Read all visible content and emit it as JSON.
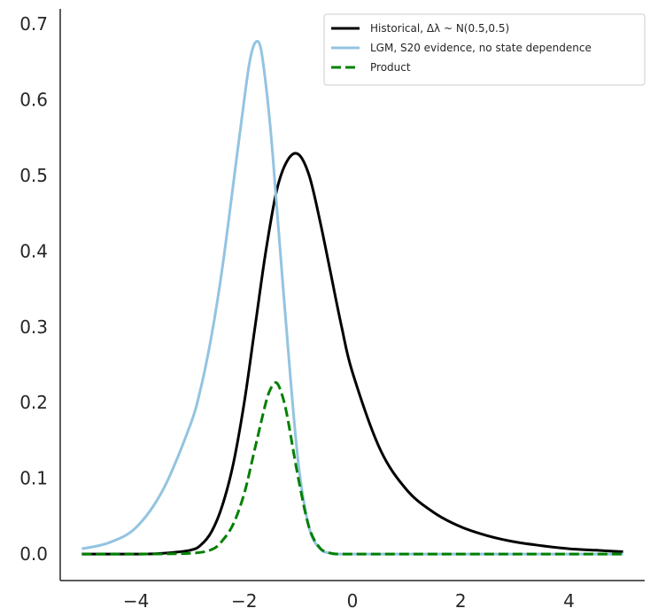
{
  "chart_data": {
    "type": "line",
    "title": "",
    "xlabel": "",
    "ylabel": "",
    "xlim": [
      -5.4,
      5.4
    ],
    "ylim": [
      -0.035,
      0.72
    ],
    "x_ticks": [
      {
        "value": -4,
        "label": "−4"
      },
      {
        "value": -2,
        "label": "−2"
      },
      {
        "value": 0,
        "label": "0"
      },
      {
        "value": 2,
        "label": "2"
      },
      {
        "value": 4,
        "label": "4"
      }
    ],
    "y_ticks": [
      {
        "value": 0.0,
        "label": "0.0"
      },
      {
        "value": 0.1,
        "label": "0.1"
      },
      {
        "value": 0.2,
        "label": "0.2"
      },
      {
        "value": 0.3,
        "label": "0.3"
      },
      {
        "value": 0.4,
        "label": "0.4"
      },
      {
        "value": 0.5,
        "label": "0.5"
      },
      {
        "value": 0.6,
        "label": "0.6"
      },
      {
        "value": 0.7,
        "label": "0.7"
      }
    ],
    "grid": false,
    "legend_position": "top-right",
    "series": [
      {
        "name": "Historical, Δλ ~ N(0.5,0.5)",
        "color": "#000000",
        "style": "solid",
        "x": [
          -5,
          -4,
          -3.5,
          -3,
          -2.8,
          -2.6,
          -2.4,
          -2.2,
          -2.0,
          -1.8,
          -1.6,
          -1.4,
          -1.2,
          -1.0,
          -0.8,
          -0.6,
          -0.4,
          -0.2,
          0.0,
          0.5,
          1.0,
          1.5,
          2.0,
          2.5,
          3.0,
          3.5,
          4.0,
          4.5,
          5.0
        ],
        "y": [
          0.0,
          0.0,
          0.001,
          0.005,
          0.012,
          0.03,
          0.065,
          0.12,
          0.2,
          0.3,
          0.4,
          0.48,
          0.52,
          0.528,
          0.5,
          0.44,
          0.37,
          0.3,
          0.24,
          0.14,
          0.085,
          0.055,
          0.036,
          0.024,
          0.016,
          0.011,
          0.007,
          0.005,
          0.003
        ]
      },
      {
        "name": "LGM, S20 evidence, no state dependence",
        "color": "#93c4e0",
        "style": "solid",
        "x": [
          -5,
          -4.5,
          -4.0,
          -3.5,
          -3.0,
          -2.8,
          -2.6,
          -2.4,
          -2.2,
          -2.0,
          -1.9,
          -1.8,
          -1.7,
          -1.6,
          -1.5,
          -1.4,
          -1.2,
          -1.0,
          -0.8,
          -0.6,
          -0.4,
          -0.2,
          0.0,
          1.0,
          2.0,
          3.0,
          4.0,
          5.0
        ],
        "y": [
          0.007,
          0.015,
          0.035,
          0.085,
          0.17,
          0.22,
          0.29,
          0.38,
          0.49,
          0.6,
          0.65,
          0.675,
          0.67,
          0.62,
          0.55,
          0.46,
          0.28,
          0.12,
          0.035,
          0.007,
          0.001,
          0.0,
          0.0,
          0.0,
          0.0,
          0.0,
          0.0,
          0.0
        ]
      },
      {
        "name": "Product",
        "color": "#008000",
        "style": "dashed",
        "x": [
          -5,
          -4,
          -3.0,
          -2.6,
          -2.4,
          -2.2,
          -2.0,
          -1.8,
          -1.6,
          -1.5,
          -1.4,
          -1.3,
          -1.2,
          -1.0,
          -0.8,
          -0.6,
          -0.4,
          -0.2,
          0.0,
          1.0,
          2.0,
          3.0,
          4.0,
          5.0
        ],
        "y": [
          0.0,
          0.0,
          0.001,
          0.006,
          0.018,
          0.04,
          0.08,
          0.14,
          0.2,
          0.22,
          0.226,
          0.21,
          0.18,
          0.1,
          0.035,
          0.008,
          0.001,
          0.0,
          0.0,
          0.0,
          0.0,
          0.0,
          0.0,
          0.0
        ]
      }
    ]
  }
}
